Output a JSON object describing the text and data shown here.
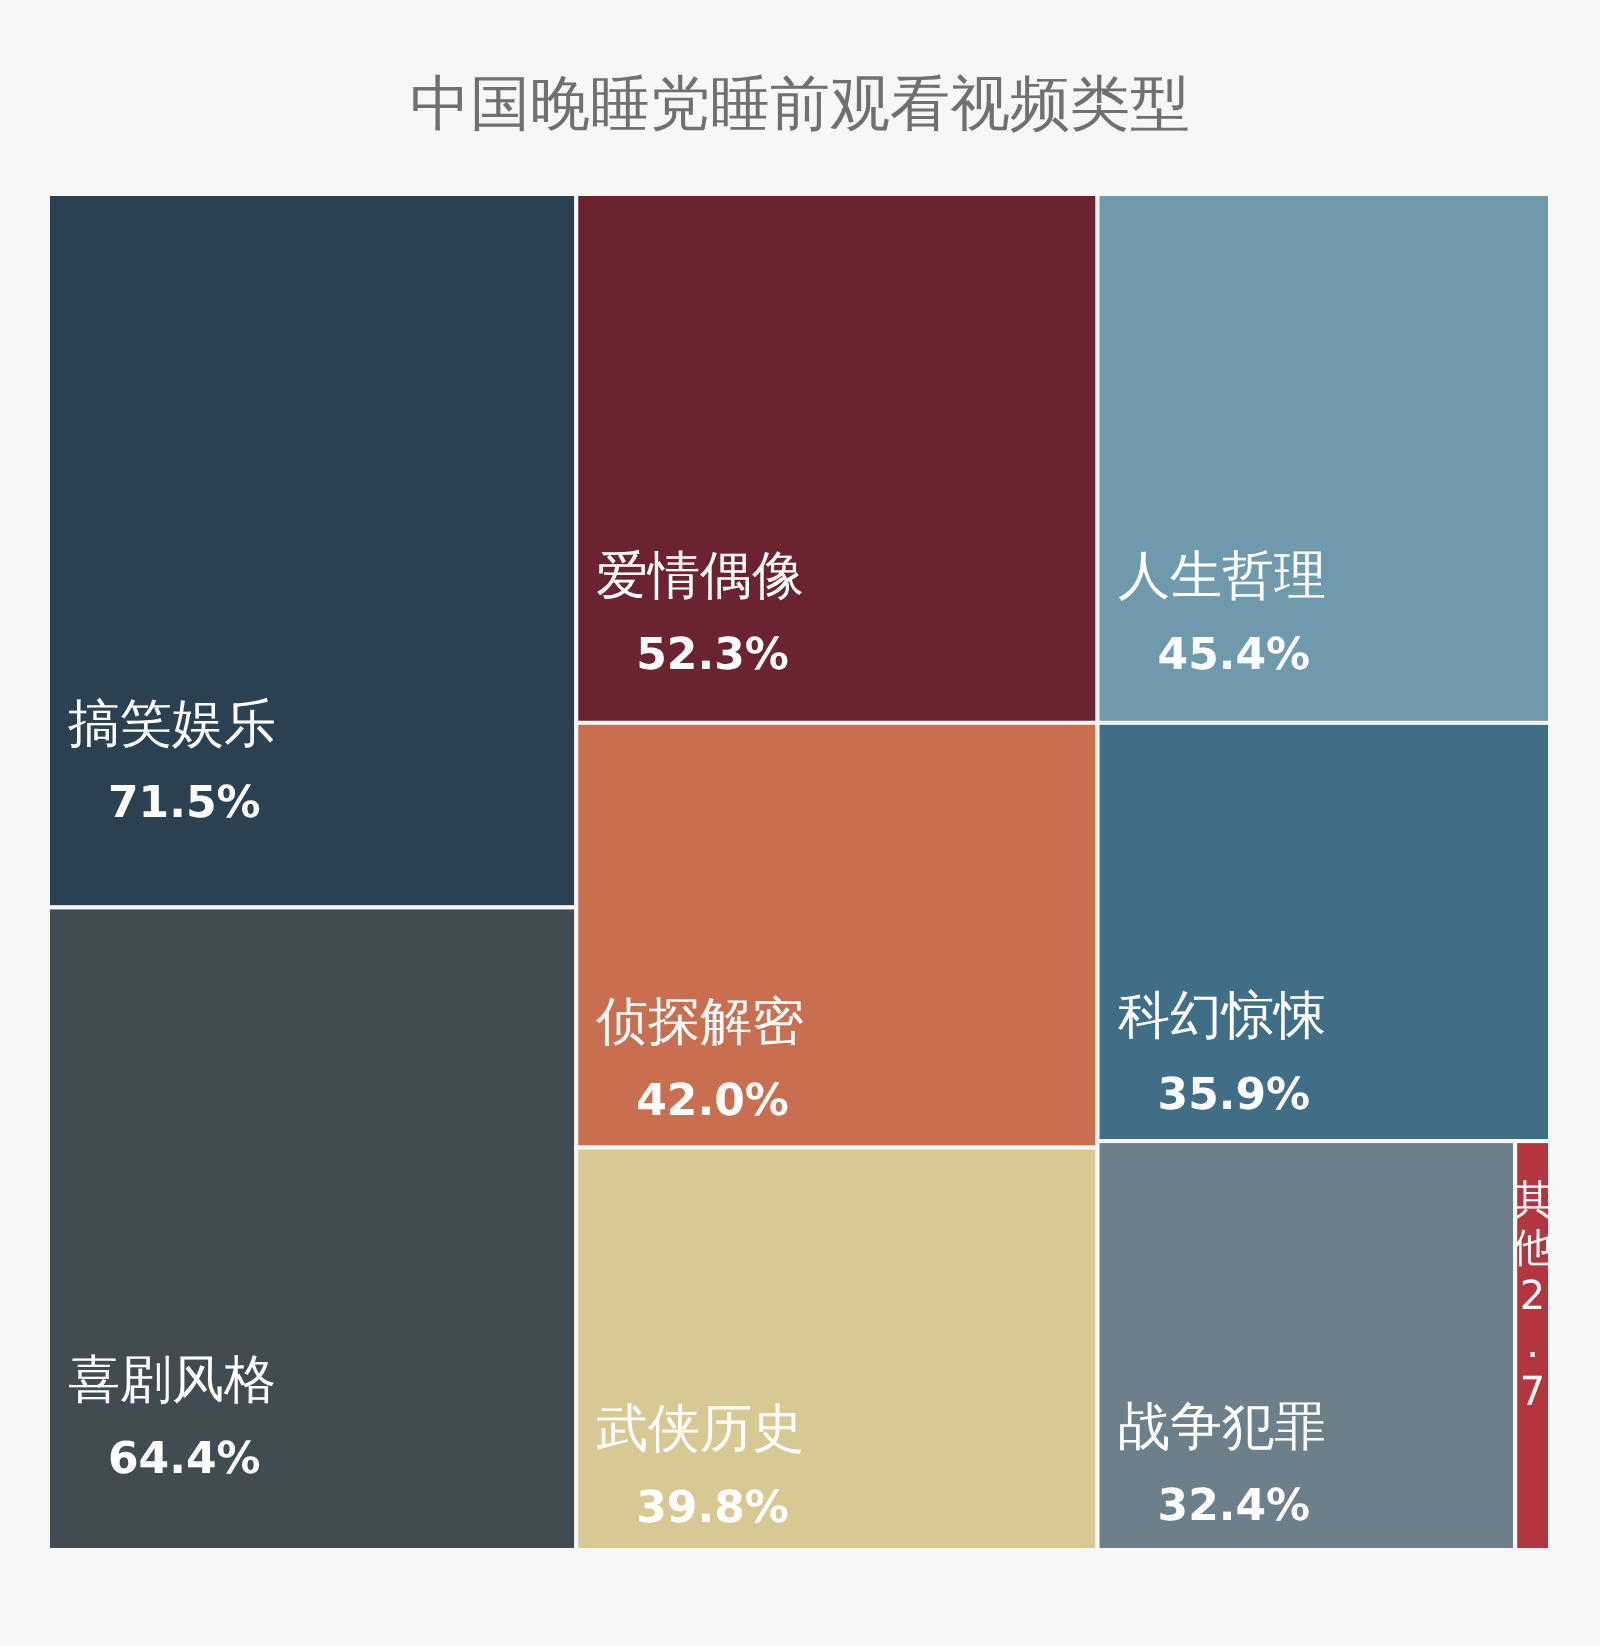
{
  "chart_data": {
    "type": "other",
    "title": "中国晚睡党睡前观看视频类型",
    "categories": [
      "搞笑娱乐",
      "喜剧风格",
      "爱情偶像",
      "侦探解密",
      "武侠历史",
      "人生哲理",
      "科幻惊悚",
      "战争犯罪",
      "其他"
    ],
    "values": [
      71.5,
      64.4,
      52.3,
      42.0,
      39.8,
      45.4,
      35.9,
      32.4,
      2.7
    ],
    "value_labels": [
      "71.5%",
      "64.4%",
      "52.3%",
      "42.0%",
      "39.8%",
      "45.4%",
      "35.9%",
      "32.4%",
      "2.7"
    ],
    "colors": [
      "#2b4152",
      "#414b52",
      "#6b2330",
      "#c96e4f",
      "#d7c894",
      "#6f9aae",
      "#3f6e86",
      "#6c7f8a",
      "#b5353f"
    ]
  }
}
